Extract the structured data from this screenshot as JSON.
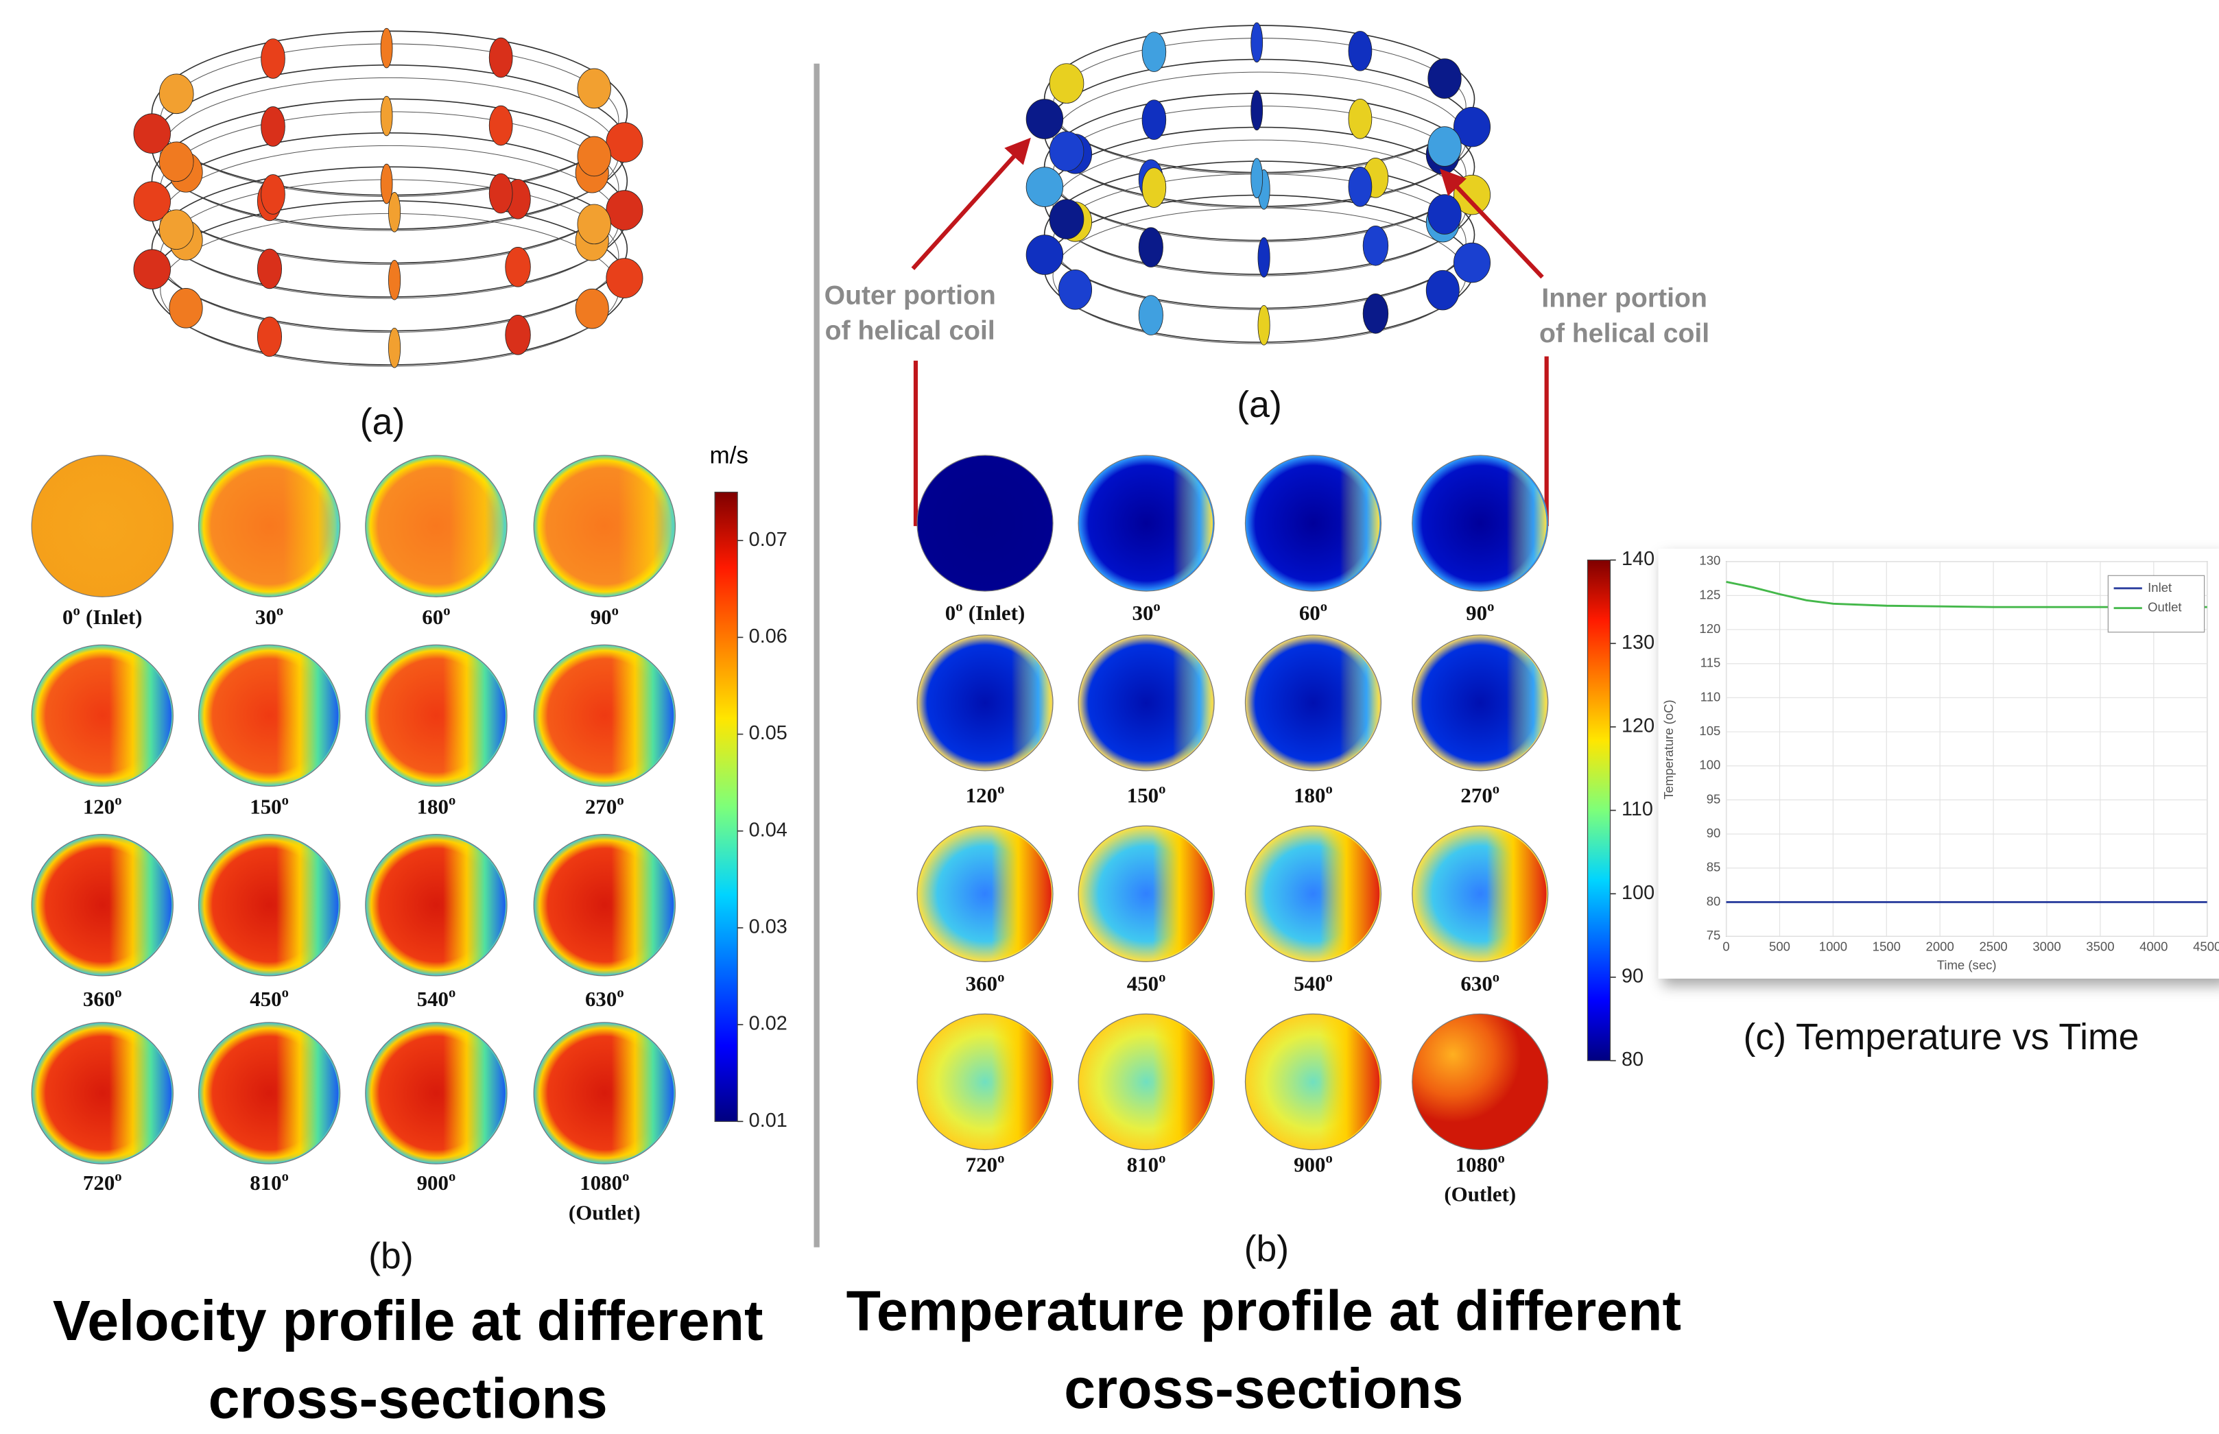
{
  "velocity_panel": {
    "helix_label": "(a)",
    "profiles_label": "(b)",
    "title_lines": [
      "Velocity profile at different",
      "cross-sections"
    ],
    "degree_mark": "o",
    "sections": [
      {
        "angle": "0",
        "note": "(Inlet)"
      },
      {
        "angle": "30"
      },
      {
        "angle": "60"
      },
      {
        "angle": "90"
      },
      {
        "angle": "120"
      },
      {
        "angle": "150"
      },
      {
        "angle": "180"
      },
      {
        "angle": "270"
      },
      {
        "angle": "360"
      },
      {
        "angle": "450"
      },
      {
        "angle": "540"
      },
      {
        "angle": "630"
      },
      {
        "angle": "720"
      },
      {
        "angle": "810"
      },
      {
        "angle": "900"
      },
      {
        "angle": "1080",
        "note": "(Outlet)"
      }
    ],
    "colorbar": {
      "unit": "m/s",
      "lim": [
        0.01,
        0.075
      ],
      "ticks": [
        0.01,
        0.02,
        0.03,
        0.04,
        0.05,
        0.06,
        0.07
      ]
    }
  },
  "temperature_panel": {
    "helix_label": "(a)",
    "profiles_label": "(b)",
    "title_lines": [
      "Temperature profile at different",
      "cross-sections"
    ],
    "annotations": [
      {
        "lines": [
          "Outer portion",
          "of helical coil"
        ]
      },
      {
        "lines": [
          "Inner portion",
          "of helical coil"
        ]
      }
    ],
    "degree_mark": "o",
    "sections": [
      {
        "angle": "0",
        "note": "(Inlet)"
      },
      {
        "angle": "30"
      },
      {
        "angle": "60"
      },
      {
        "angle": "90"
      },
      {
        "angle": "120"
      },
      {
        "angle": "150"
      },
      {
        "angle": "180"
      },
      {
        "angle": "270"
      },
      {
        "angle": "360"
      },
      {
        "angle": "450"
      },
      {
        "angle": "540"
      },
      {
        "angle": "630"
      },
      {
        "angle": "720"
      },
      {
        "angle": "810"
      },
      {
        "angle": "900"
      },
      {
        "angle": "1080",
        "note": "(Outlet)"
      }
    ],
    "colorbar": {
      "lim": [
        80,
        140
      ],
      "ticks": [
        80,
        90,
        100,
        110,
        120,
        130,
        140
      ]
    }
  },
  "chart_data": {
    "type": "line",
    "caption": "(c) Temperature vs Time",
    "x_label": "Time (sec)",
    "y_label": "Temperature (oC)",
    "x": [
      0,
      250,
      500,
      750,
      1000,
      1500,
      2000,
      2500,
      3000,
      3500,
      4000,
      4500
    ],
    "series": [
      {
        "name": "Inlet",
        "color": "#2b3f9e",
        "values": [
          80,
          80,
          80,
          80,
          80,
          80,
          80,
          80,
          80,
          80,
          80,
          80
        ]
      },
      {
        "name": "Outlet",
        "color": "#44b84a",
        "values": [
          127,
          126.2,
          125.2,
          124.3,
          123.8,
          123.5,
          123.4,
          123.3,
          123.3,
          123.3,
          123.3,
          123.3
        ]
      }
    ],
    "xlim": [
      0,
      4500
    ],
    "ylim": [
      75,
      130
    ],
    "xticks": [
      0,
      500,
      1000,
      1500,
      2000,
      2500,
      3000,
      3500,
      4000,
      4500
    ],
    "yticks": [
      75,
      80,
      85,
      90,
      95,
      100,
      105,
      110,
      115,
      120,
      125,
      130
    ],
    "grid": true,
    "legend": "top-right"
  }
}
